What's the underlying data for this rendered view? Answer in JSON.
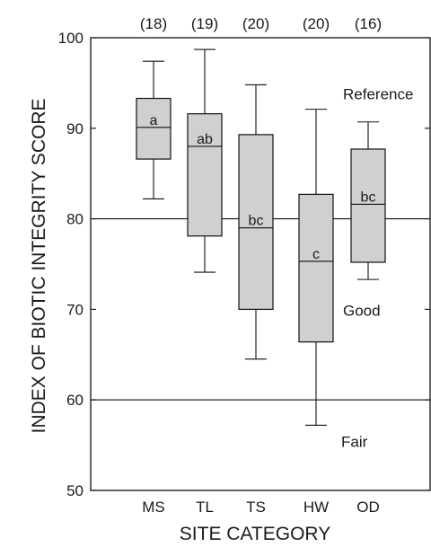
{
  "chart_data": {
    "type": "boxplot",
    "title": "",
    "xlabel": "SITE CATEGORY",
    "ylabel": "INDEX OF BIOTIC INTEGRITY SCORE",
    "ylim": [
      50,
      100
    ],
    "yticks": [
      50,
      60,
      70,
      80,
      90,
      100
    ],
    "grid": false,
    "box_fill": "#d0d0d0",
    "categories": [
      "MS",
      "TL",
      "TS",
      "HW",
      "OD"
    ],
    "sample_sizes": [
      "(18)",
      "(19)",
      "(20)",
      "(20)",
      "(16)"
    ],
    "boxes": [
      {
        "category": "MS",
        "whisker_low": 82.2,
        "q1": 86.6,
        "median": 90.1,
        "q3": 93.3,
        "whisker_high": 97.4,
        "group": "a"
      },
      {
        "category": "TL",
        "whisker_low": 74.1,
        "q1": 78.1,
        "median": 88.0,
        "q3": 91.6,
        "whisker_high": 98.7,
        "group": "ab"
      },
      {
        "category": "TS",
        "whisker_low": 64.5,
        "q1": 70.0,
        "median": 79.0,
        "q3": 89.3,
        "whisker_high": 94.8,
        "group": "bc"
      },
      {
        "category": "HW",
        "whisker_low": 57.2,
        "q1": 66.4,
        "median": 75.3,
        "q3": 82.7,
        "whisker_high": 92.1,
        "group": "c"
      },
      {
        "category": "OD",
        "whisker_low": 73.3,
        "q1": 75.2,
        "median": 81.6,
        "q3": 87.7,
        "whisker_high": 90.7,
        "group": "bc"
      }
    ],
    "reference_lines": [
      80,
      60
    ],
    "zones": [
      {
        "label": "Reference",
        "y": 93.2
      },
      {
        "label": "Good",
        "y": 69.3
      },
      {
        "label": "Fair",
        "y": 54.8
      }
    ]
  }
}
